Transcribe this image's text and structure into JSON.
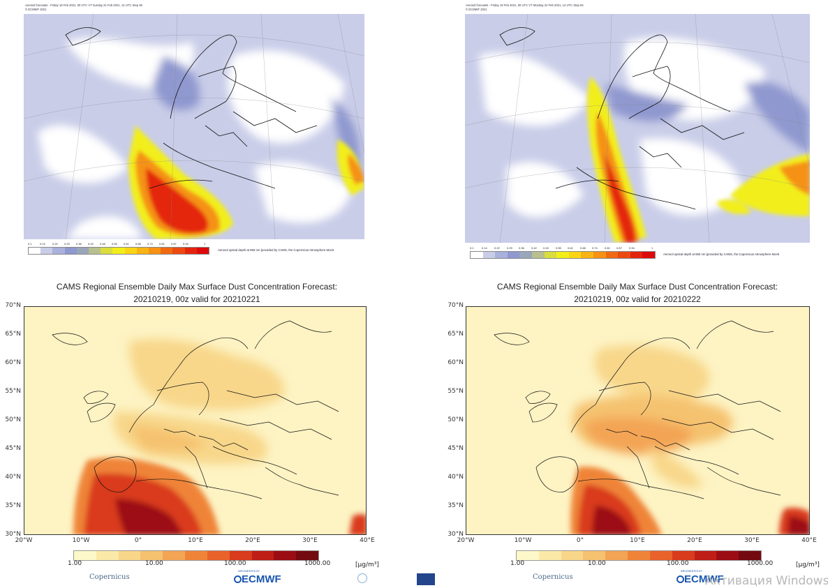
{
  "aod_left": {
    "header": "Aerosol forecasts - Friday 19 Feb 2021, 00 UTC VT Sunday 21 Feb 2021, 12 UTC Step 60",
    "copyright": "© ECMWF 2021",
    "colorbar_ticks": [
      "0.1",
      "0.14",
      "0.22",
      "0.29",
      "0.36",
      "0.43",
      "0.48",
      "0.55",
      "0.61",
      "0.68",
      "0.74",
      "0.81",
      "0.87",
      "0.94",
      "1"
    ],
    "colorbar_label": "Aerosol optical depth at 550 nm (provided by CAMS, the Copernicus Atmosphere Monit"
  },
  "aod_right": {
    "header": "Aerosol forecasts - Friday 19 Feb 2021, 00 UTC VT Monday 22 Feb 2021, 12 UTC Step 84",
    "copyright": "© ECMWF 2021",
    "colorbar_ticks": [
      "0.1",
      "0.14",
      "0.22",
      "0.29",
      "0.36",
      "0.42",
      "0.49",
      "0.55",
      "0.61",
      "0.68",
      "0.74",
      "0.81",
      "0.87",
      "0.94",
      "1"
    ],
    "colorbar_label": "Aerosol optical depth at 550 nm (provided by CAMS, the Copernicus Atmosphere Monit"
  },
  "aod_colors": [
    "#ffffff",
    "#c9cde8",
    "#a9b1dc",
    "#8f98cf",
    "#9aa6b9",
    "#b7c08e",
    "#d9dd3d",
    "#f2ee1a",
    "#fbd515",
    "#f8b314",
    "#f59213",
    "#f06a12",
    "#eb4a10",
    "#e4250e",
    "#dd0a0c"
  ],
  "dust_left": {
    "title_line1": "CAMS Regional Ensemble Daily Max Surface Dust Concentration Forecast:",
    "title_line2": "20210219, 00z valid for 20210221"
  },
  "dust_right": {
    "title_line1": "CAMS Regional Ensemble Daily Max Surface Dust Concentration Forecast:",
    "title_line2": "20210219, 00z valid for 20210222"
  },
  "lat_labels": [
    "70°N",
    "65°N",
    "60°N",
    "55°N",
    "50°N",
    "45°N",
    "40°N",
    "35°N",
    "30°N"
  ],
  "lon_labels": [
    "20°W",
    "10°W",
    "0°",
    "10°E",
    "20°E",
    "30°E",
    "40°E"
  ],
  "dust_colorbar": {
    "ticks": [
      "1.00",
      "10.00",
      "100.00",
      "1000.00"
    ],
    "unit": "[µg/m³]",
    "colors": [
      "#fdf8c9",
      "#fbe9a8",
      "#f8d78a",
      "#f5c26f",
      "#f3a555",
      "#ef8438",
      "#e9622a",
      "#d93b1d",
      "#bf1e17",
      "#9c0d13",
      "#730a0f"
    ]
  },
  "footer": {
    "copernicus": "Copernicus",
    "ecmwf": "ECMWF",
    "ecmwf_sub": "IMPLEMENTED BY",
    "windows_watermark": "Активация Windows"
  }
}
